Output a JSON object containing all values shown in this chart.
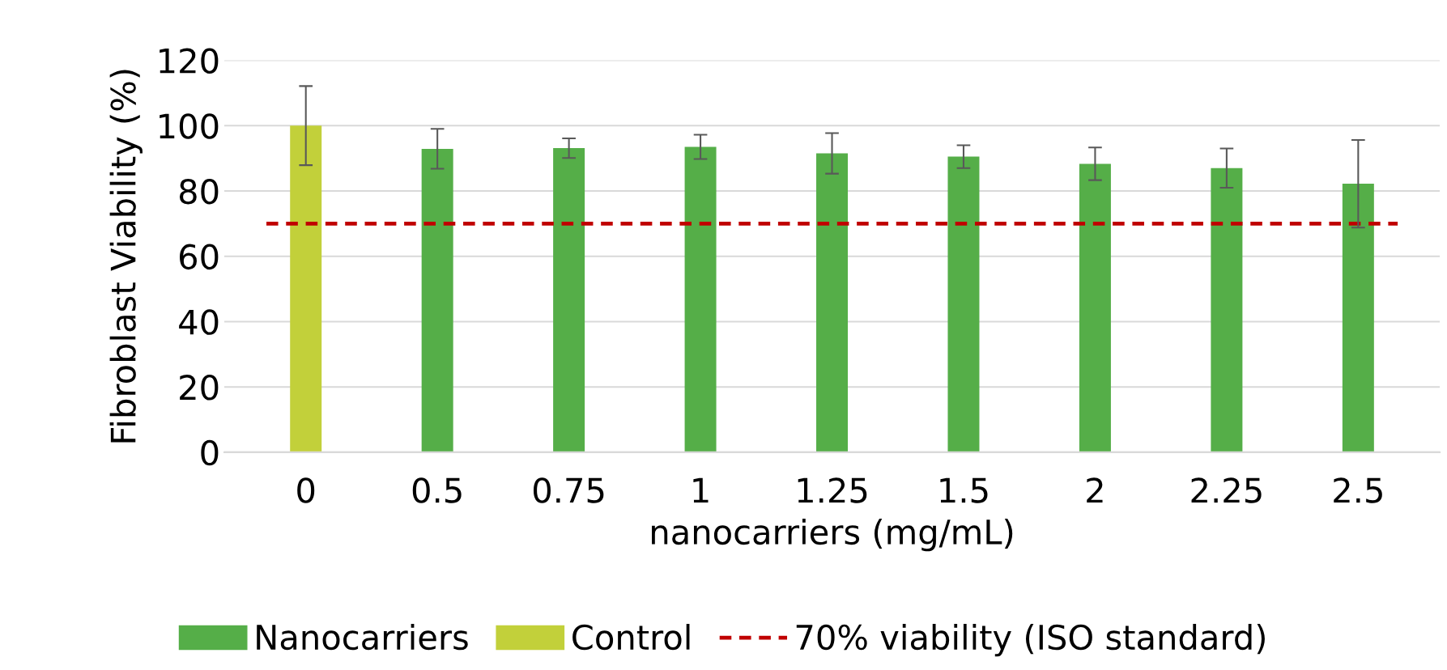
{
  "chart_data": {
    "type": "bar",
    "xlabel": "nanocarriers (mg/mL)",
    "ylabel": "Fibroblast Viability (%)",
    "categories": [
      "0",
      "0.5",
      "0.75",
      "1",
      "1.25",
      "1.5",
      "2",
      "2.25",
      "2.5"
    ],
    "series": [
      {
        "name": "Nanocarriers",
        "color": "#55ae48",
        "values": [
          null,
          92.9,
          93.1,
          93.5,
          91.5,
          90.5,
          88.3,
          87.0,
          82.2
        ],
        "errors": [
          null,
          6.1,
          3.0,
          3.7,
          6.2,
          3.5,
          5.0,
          6.0,
          13.4
        ]
      },
      {
        "name": "Control",
        "color": "#c2d03a",
        "values": [
          100,
          null,
          null,
          null,
          null,
          null,
          null,
          null,
          null
        ],
        "errors": [
          12.1,
          null,
          null,
          null,
          null,
          null,
          null,
          null,
          null
        ]
      }
    ],
    "ref_lines": [
      {
        "axis": "y",
        "value": 70,
        "label": "70% viability (ISO standard)",
        "color": "#c00000",
        "line_style": "dashed"
      }
    ],
    "ylim": [
      0,
      120
    ],
    "yticks": [
      0,
      20,
      40,
      60,
      80,
      100,
      120
    ],
    "grid": "y",
    "legend": "bottom"
  }
}
